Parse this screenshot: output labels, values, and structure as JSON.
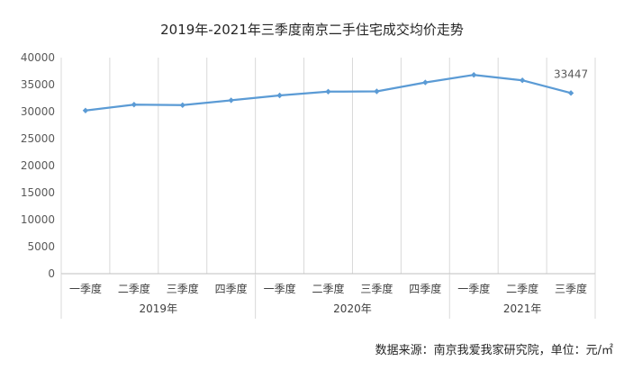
{
  "chart_data": {
    "type": "line",
    "title": "2019年-2021年三季度南京二手住宅成交均价走势",
    "quarters": [
      "一季度",
      "二季度",
      "三季度",
      "四季度",
      "一季度",
      "二季度",
      "三季度",
      "四季度",
      "一季度",
      "二季度",
      "三季度"
    ],
    "years": [
      {
        "label": "2019年",
        "span": 4
      },
      {
        "label": "2020年",
        "span": 4
      },
      {
        "label": "2021年",
        "span": 3
      }
    ],
    "series": [
      {
        "values": [
          30200,
          31300,
          31200,
          32100,
          33000,
          33700,
          33750,
          35400,
          36800,
          35800,
          33447
        ]
      }
    ],
    "data_label": "33447",
    "ylim": [
      0,
      40000
    ],
    "yticks": [
      "0",
      "5000",
      "10000",
      "15000",
      "20000",
      "25000",
      "30000",
      "35000",
      "40000"
    ],
    "grid": "vertical",
    "line_color": "#5b9bd5"
  },
  "source_text": "数据来源：南京我爱我家研究院，单位：元/㎡"
}
